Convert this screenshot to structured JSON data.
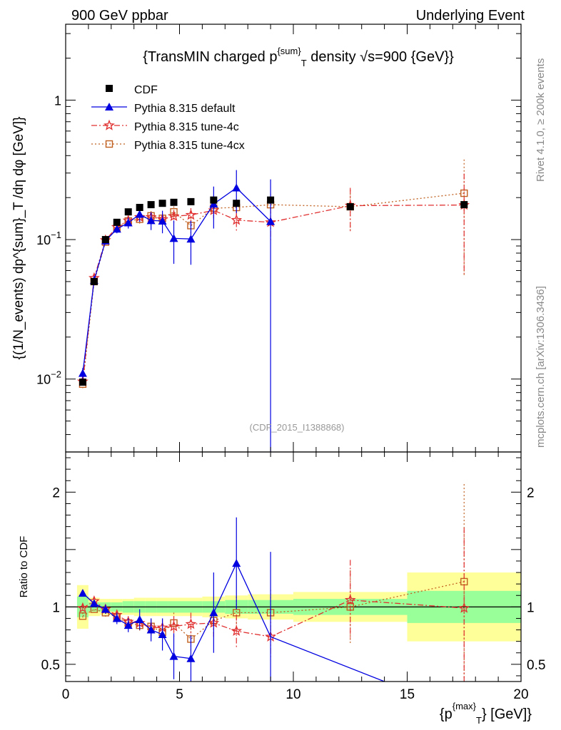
{
  "header": {
    "left": "900 GeV ppbar",
    "right": "Underlying Event"
  },
  "side": {
    "rivet": "Rivet 4.1.0, ≥ 200k events",
    "site": "mcplots.cern.ch [arXiv:1306.3436]"
  },
  "chart_data": [
    {
      "type": "scatter",
      "panel": "main",
      "title_parts": {
        "pre": "{TransMIN charged p",
        "sup": "{sum}",
        "sub": "T",
        "post": " density √s=900 {GeV}}"
      },
      "ylabel": "{(1/N_events) dp^{sum}_T /dη dφ [GeV]}",
      "y_scale": "log",
      "ylim": [
        0.003,
        3.5
      ],
      "xlim": [
        0,
        20
      ],
      "y_ticks": [
        {
          "value": 0.01,
          "base": "10",
          "exp": "−2"
        },
        {
          "value": 0.1,
          "base": "10",
          "exp": "−1"
        },
        {
          "value": 1,
          "label": "1"
        }
      ],
      "watermark": "(CDF_2015_I1388868)",
      "legend_position": "top-left",
      "series": [
        {
          "name": "CDF",
          "color": "#000000",
          "marker": "square-filled",
          "line": "none",
          "x": [
            0.75,
            1.25,
            1.75,
            2.25,
            2.75,
            3.25,
            3.75,
            4.25,
            4.75,
            5.5,
            6.5,
            7.5,
            9.0,
            12.5,
            17.5
          ],
          "y": [
            0.0095,
            0.05,
            0.1,
            0.133,
            0.158,
            0.17,
            0.178,
            0.182,
            0.185,
            0.187,
            0.192,
            0.182,
            0.192,
            0.172,
            0.178
          ],
          "err": [
            0,
            0,
            0,
            0,
            0,
            0,
            0,
            0,
            0,
            0,
            0,
            0,
            0,
            0,
            0
          ]
        },
        {
          "name": "Pythia 8.315 default",
          "color": "#0000e0",
          "marker": "triangle-filled",
          "line": "solid",
          "x": [
            0.75,
            1.25,
            1.75,
            2.25,
            2.75,
            3.25,
            3.75,
            4.25,
            4.75,
            5.5,
            6.5,
            7.5,
            9.0
          ],
          "y": [
            0.011,
            0.051,
            0.098,
            0.119,
            0.132,
            0.152,
            0.137,
            0.136,
            0.102,
            0.101,
            0.18,
            0.235,
            0.135
          ],
          "err": [
            0.001,
            0.004,
            0.006,
            0.008,
            0.012,
            0.018,
            0.02,
            0.025,
            0.035,
            0.035,
            0.06,
            0.08,
            0.135
          ]
        },
        {
          "name": "Pythia 8.315 tune-4c",
          "color": "#e03030",
          "marker": "star-open",
          "line": "dashdot",
          "x": [
            0.75,
            1.25,
            1.75,
            2.25,
            2.75,
            3.25,
            3.75,
            4.25,
            4.75,
            5.5,
            6.5,
            7.5,
            9.0,
            12.5,
            17.5
          ],
          "y": [
            0.0096,
            0.053,
            0.099,
            0.123,
            0.137,
            0.145,
            0.145,
            0.14,
            0.147,
            0.15,
            0.162,
            0.138,
            0.133,
            0.175,
            0.177
          ],
          "err": [
            0.0006,
            0.003,
            0.005,
            0.007,
            0.009,
            0.01,
            0.012,
            0.013,
            0.015,
            0.018,
            0.02,
            0.025,
            0.035,
            0.06,
            0.12
          ]
        },
        {
          "name": "Pythia 8.315 tune-4cx",
          "color": "#c06020",
          "marker": "square-open",
          "line": "dotted",
          "x": [
            0.75,
            1.25,
            1.75,
            2.25,
            2.75,
            3.25,
            3.75,
            4.25,
            4.75,
            5.5,
            6.5,
            7.5,
            9.0,
            12.5,
            17.5
          ],
          "y": [
            0.0092,
            0.05,
            0.096,
            0.121,
            0.136,
            0.14,
            0.148,
            0.142,
            0.158,
            0.126,
            0.168,
            0.17,
            0.178,
            0.172,
            0.215
          ],
          "err": [
            0.0006,
            0.003,
            0.005,
            0.007,
            0.009,
            0.01,
            0.012,
            0.013,
            0.015,
            0.018,
            0.02,
            0.025,
            0.035,
            0.055,
            0.16
          ]
        }
      ]
    },
    {
      "type": "scatter",
      "panel": "ratio",
      "ylabel": "Ratio to CDF",
      "y_scale": "linear",
      "ylim": [
        0.35,
        2.35
      ],
      "xlim": [
        0,
        20
      ],
      "xlabel_parts": {
        "pre": "{p",
        "sup": "{max}",
        "sub": "T",
        "post": "} [GeV]}"
      },
      "x_ticks": [
        0,
        5,
        10,
        15,
        20
      ],
      "y_ticks": [
        0.5,
        1,
        2
      ],
      "bands": {
        "edges": [
          0.5,
          1.0,
          1.5,
          2.0,
          2.5,
          3.0,
          3.5,
          4.0,
          4.5,
          5.0,
          6.0,
          7.0,
          8.0,
          10.0,
          15.0,
          20.0
        ],
        "yellow_lo": [
          0.81,
          0.92,
          0.93,
          0.93,
          0.93,
          0.92,
          0.92,
          0.92,
          0.92,
          0.92,
          0.91,
          0.9,
          0.89,
          0.87,
          0.7
        ],
        "yellow_hi": [
          1.19,
          1.08,
          1.07,
          1.07,
          1.07,
          1.08,
          1.08,
          1.08,
          1.08,
          1.08,
          1.09,
          1.1,
          1.11,
          1.13,
          1.3
        ],
        "green_lo": [
          0.91,
          0.96,
          0.96,
          0.96,
          0.95,
          0.95,
          0.95,
          0.95,
          0.95,
          0.95,
          0.95,
          0.94,
          0.94,
          0.93,
          0.86
        ],
        "green_hi": [
          1.09,
          1.04,
          1.04,
          1.04,
          1.05,
          1.05,
          1.05,
          1.05,
          1.05,
          1.05,
          1.05,
          1.06,
          1.06,
          1.07,
          1.14
        ]
      },
      "series": [
        {
          "name": "Pythia 8.315 default",
          "color": "#0000e0",
          "marker": "triangle-filled",
          "line": "solid",
          "x": [
            0.75,
            1.25,
            1.75,
            2.25,
            2.75,
            3.25,
            3.75,
            4.25,
            4.75,
            5.5,
            6.5,
            7.5,
            9.0,
            14.0
          ],
          "y": [
            1.12,
            1.03,
            0.98,
            0.9,
            0.84,
            0.89,
            0.8,
            0.76,
            0.57,
            0.55,
            0.95,
            1.38,
            0.74,
            0.35
          ],
          "err": [
            0.02,
            0.03,
            0.04,
            0.05,
            0.06,
            0.09,
            0.1,
            0.14,
            0.2,
            0.2,
            0.35,
            0.4,
            0.74,
            0
          ],
          "marker_mask": [
            1,
            1,
            1,
            1,
            1,
            1,
            1,
            1,
            1,
            1,
            1,
            1,
            0,
            0
          ]
        },
        {
          "name": "Pythia 8.315 tune-4c",
          "color": "#e03030",
          "marker": "star-open",
          "line": "dashdot",
          "x": [
            0.75,
            1.25,
            1.75,
            2.25,
            2.75,
            3.25,
            3.75,
            4.25,
            4.75,
            5.5,
            6.5,
            7.5,
            9.0,
            12.5,
            17.5
          ],
          "y": [
            0.99,
            1.05,
            0.98,
            0.93,
            0.87,
            0.86,
            0.82,
            0.82,
            0.83,
            0.85,
            0.86,
            0.79,
            0.74,
            1.06,
            0.99
          ],
          "err": [
            0.03,
            0.03,
            0.04,
            0.04,
            0.05,
            0.06,
            0.07,
            0.08,
            0.09,
            0.1,
            0.12,
            0.14,
            0.2,
            0.35,
            0.7
          ],
          "marker_mask": [
            1,
            1,
            1,
            1,
            1,
            1,
            1,
            1,
            1,
            1,
            1,
            1,
            1,
            1,
            1
          ]
        },
        {
          "name": "Pythia 8.315 tune-4cx",
          "color": "#c06020",
          "marker": "square-open",
          "line": "dotted",
          "x": [
            0.75,
            1.25,
            1.75,
            2.25,
            2.75,
            3.25,
            3.75,
            4.25,
            4.75,
            5.5,
            6.5,
            7.5,
            9.0,
            12.5,
            17.5
          ],
          "y": [
            0.92,
            0.98,
            0.95,
            0.91,
            0.86,
            0.84,
            0.83,
            0.78,
            0.86,
            0.72,
            0.88,
            0.95,
            0.95,
            1.0,
            1.22
          ],
          "err": [
            0.03,
            0.03,
            0.04,
            0.04,
            0.05,
            0.06,
            0.07,
            0.08,
            0.09,
            0.1,
            0.12,
            0.14,
            0.2,
            0.32,
            0.85
          ],
          "marker_mask": [
            1,
            1,
            1,
            1,
            1,
            1,
            1,
            1,
            1,
            1,
            1,
            1,
            1,
            1,
            1
          ]
        }
      ]
    }
  ]
}
